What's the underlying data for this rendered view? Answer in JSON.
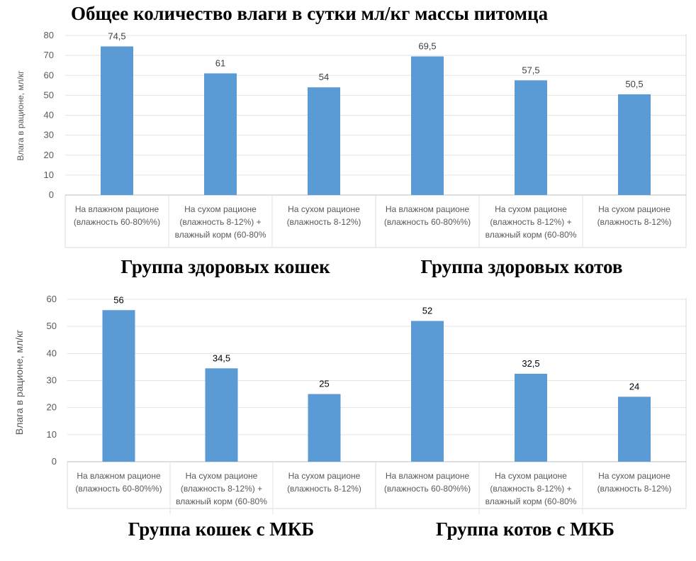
{
  "title": "Общее количество влаги в сутки мл/кг массы питомца",
  "bar_color": "#5b9bd5",
  "chart_data": [
    {
      "type": "bar",
      "group_title": "Группа здоровых кошек",
      "ylabel": "Влага в рационе, мл/кг",
      "ylim": [
        0,
        80
      ],
      "yticks": [
        0,
        10,
        20,
        30,
        40,
        50,
        60,
        70,
        80
      ],
      "categories": [
        [
          "На влажном рационе",
          "(влажность 60-80%%)"
        ],
        [
          "На сухом рационе",
          "(влажность 8-12%) +",
          "влажный корм (60-80%"
        ],
        [
          "На сухом рационе",
          "(влажность 8-12%)"
        ]
      ],
      "values": [
        74.5,
        61,
        54
      ],
      "data_labels": [
        "74,5",
        "61",
        "54"
      ]
    },
    {
      "type": "bar",
      "group_title": "Группа здоровых котов",
      "ylim": [
        0,
        80
      ],
      "categories": [
        [
          "На влажном рационе",
          "(влажность 60-80%%)"
        ],
        [
          "На сухом рационе",
          "(влажность 8-12%) +",
          "влажный корм (60-80%"
        ],
        [
          "На сухом рационе",
          "(влажность 8-12%)"
        ]
      ],
      "values": [
        69.5,
        57.5,
        50.5
      ],
      "data_labels": [
        "69,5",
        "57,5",
        "50,5"
      ]
    },
    {
      "type": "bar",
      "group_title": "Группа  кошек с МКБ",
      "ylabel": "Влага в рационе, мл/кг",
      "ylim": [
        0,
        60
      ],
      "yticks": [
        0,
        10,
        20,
        30,
        40,
        50,
        60
      ],
      "categories": [
        [
          "На влажном рационе",
          "(влажность 60-80%%)"
        ],
        [
          "На сухом рационе",
          "(влажность 8-12%) +",
          "влажный корм (60-80%"
        ],
        [
          "На сухом рационе",
          "(влажность 8-12%)"
        ]
      ],
      "values": [
        56,
        34.5,
        25
      ],
      "data_labels": [
        "56",
        "34,5",
        "25"
      ]
    },
    {
      "type": "bar",
      "group_title": "Группа  котов с МКБ",
      "ylim": [
        0,
        60
      ],
      "categories": [
        [
          "На влажном рационе",
          "(влажность 60-80%%)"
        ],
        [
          "На сухом рационе",
          "(влажность 8-12%) +",
          "влажный корм (60-80%"
        ],
        [
          "На сухом рационе",
          "(влажность 8-12%)"
        ]
      ],
      "values": [
        52,
        32.5,
        24
      ],
      "data_labels": [
        "52",
        "32,5",
        "24"
      ]
    }
  ]
}
